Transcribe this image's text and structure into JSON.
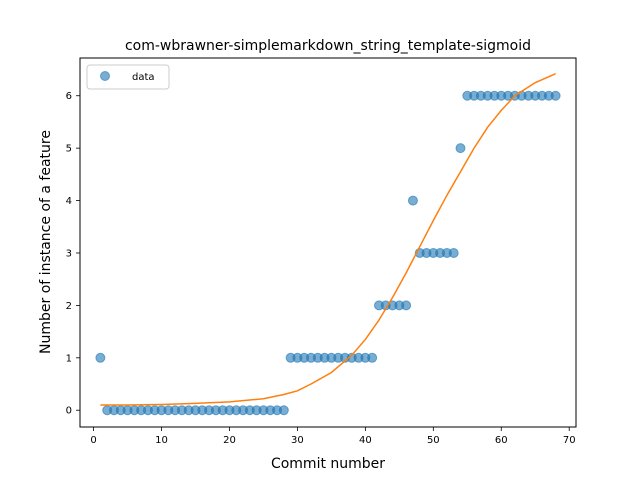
{
  "chart_data": {
    "type": "scatter",
    "title": "com-wbrawner-simplemarkdown_string_template-sigmoid",
    "xlabel": "Commit number",
    "ylabel": "Number of instance of a feature",
    "xlim": [
      -2,
      71
    ],
    "ylim": [
      -0.32,
      6.72
    ],
    "xticks": [
      0,
      10,
      20,
      30,
      40,
      50,
      60,
      70
    ],
    "yticks": [
      0,
      1,
      2,
      3,
      4,
      5,
      6
    ],
    "legend": {
      "placement": "top-left",
      "entries": [
        "data"
      ]
    },
    "grid": false,
    "colors": {
      "data": "#1f77b4",
      "fit": "#ff7f0e"
    },
    "series": [
      {
        "name": "data",
        "kind": "scatter",
        "x": [
          1,
          2,
          3,
          4,
          5,
          6,
          7,
          8,
          9,
          10,
          11,
          12,
          13,
          14,
          15,
          16,
          17,
          18,
          19,
          20,
          21,
          22,
          23,
          24,
          25,
          26,
          27,
          28,
          29,
          30,
          31,
          32,
          33,
          34,
          35,
          36,
          37,
          38,
          39,
          40,
          41,
          42,
          43,
          44,
          45,
          46,
          47,
          48,
          49,
          50,
          51,
          52,
          53,
          54,
          55,
          56,
          57,
          58,
          59,
          60,
          61,
          62,
          63,
          64,
          65,
          66,
          67,
          68
        ],
        "y": [
          1,
          0,
          0,
          0,
          0,
          0,
          0,
          0,
          0,
          0,
          0,
          0,
          0,
          0,
          0,
          0,
          0,
          0,
          0,
          0,
          0,
          0,
          0,
          0,
          0,
          0,
          0,
          0,
          1,
          1,
          1,
          1,
          1,
          1,
          1,
          1,
          1,
          1,
          1,
          1,
          1,
          2,
          2,
          2,
          2,
          2,
          4,
          3,
          3,
          3,
          3,
          3,
          3,
          5,
          6,
          6,
          6,
          6,
          6,
          6,
          6,
          6,
          6,
          6,
          6,
          6,
          6,
          6
        ]
      },
      {
        "kind": "line",
        "x": [
          1,
          5,
          10,
          15,
          20,
          25,
          28,
          30,
          32,
          35,
          38,
          40,
          42,
          44,
          46,
          48,
          50,
          52,
          54,
          56,
          58,
          60,
          62,
          65,
          68
        ],
        "y": [
          0.1,
          0.1,
          0.11,
          0.13,
          0.16,
          0.22,
          0.3,
          0.37,
          0.5,
          0.72,
          1.05,
          1.35,
          1.72,
          2.15,
          2.62,
          3.12,
          3.62,
          4.1,
          4.55,
          5.0,
          5.4,
          5.72,
          6.0,
          6.25,
          6.42
        ]
      }
    ]
  }
}
